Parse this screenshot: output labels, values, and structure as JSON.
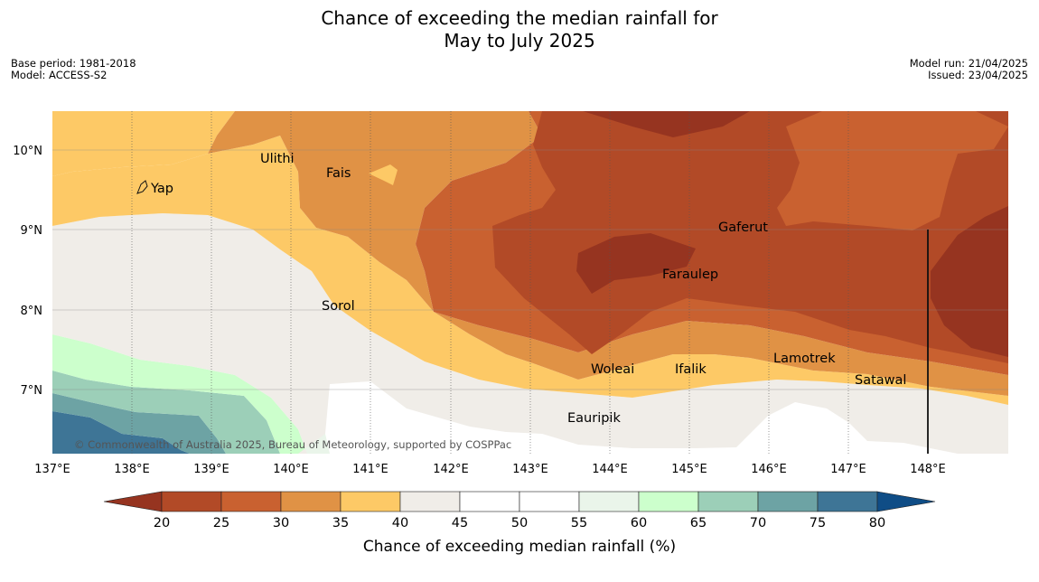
{
  "title": {
    "line1": "Chance of exceeding the median rainfall for",
    "line2": "May to July 2025"
  },
  "meta": {
    "base_period": "Base period: 1981-2018",
    "model": "Model: ACCESS-S2",
    "model_run": "Model run: 21/04/2025",
    "issued": "Issued: 23/04/2025"
  },
  "map": {
    "lon_ticks": [
      "137°E",
      "138°E",
      "139°E",
      "140°E",
      "141°E",
      "142°E",
      "143°E",
      "144°E",
      "145°E",
      "146°E",
      "147°E",
      "148°E"
    ],
    "lat_ticks": [
      "10°N",
      "9°N",
      "8°N",
      "7°N"
    ],
    "copyright": "© Commonwealth of Australia 2025, Bureau of Meteorology, supported by COSPPac",
    "places": [
      "Yap",
      "Ulithi",
      "Fais",
      "Sorol",
      "Gaferut",
      "Faraulep",
      "Woleai",
      "Ifalik",
      "Lamotrek",
      "Satawal",
      "Eauripik"
    ],
    "colors": {
      "lt20": "#963420",
      "20-25": "#b24a27",
      "25-30": "#c96130",
      "30-35": "#e09245",
      "35-40": "#fdc966",
      "40-45": "#f0ede8",
      "45-55": "#ffffff",
      "55-60": "#eaf5ea",
      "60-65": "#ccffcc",
      "65-70": "#9ccfb8",
      "70-75": "#6da3a4",
      "75-80": "#3e7596",
      "gt80": "#0f4d86"
    }
  },
  "colorbar": {
    "ticks": [
      "20",
      "25",
      "30",
      "35",
      "40",
      "45",
      "50",
      "55",
      "60",
      "65",
      "70",
      "75",
      "80"
    ],
    "label": "Chance of exceeding median rainfall (%)"
  }
}
